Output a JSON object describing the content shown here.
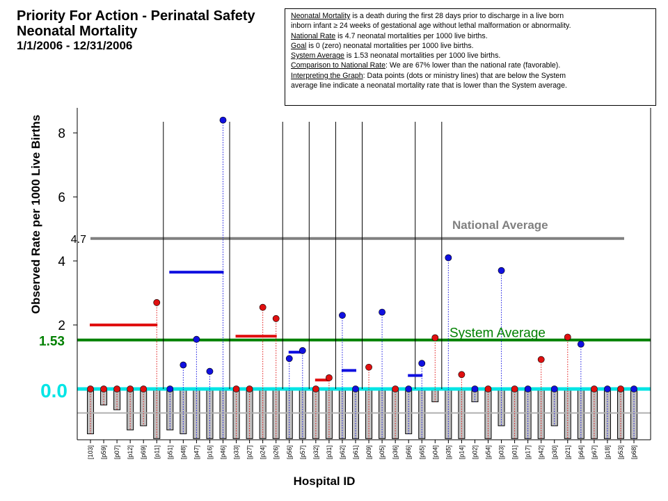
{
  "header": {
    "title_line1": "Priority For Action - Perinatal Safety",
    "title_line2": "Neonatal Mortality",
    "date_range": "1/1/2006 - 12/31/2006"
  },
  "info_box": {
    "lines": [
      {
        "term": "Neonatal Mortality",
        "rest": " is a death during the first 28 days prior to discharge in a live born"
      },
      {
        "term": "",
        "rest": "inborn infant ≥ 24 weeks of gestational age without lethal malformation or abnormality."
      },
      {
        "term": "National Rate",
        "rest": " is 4.7 neonatal mortalities per 1000 live births."
      },
      {
        "term": "Goal",
        "rest": " is 0 (zero) neonatal mortalities per 1000 live births."
      },
      {
        "term": "System Average",
        "rest": " is 1.53 neonatal mortalities per 1000 live births."
      },
      {
        "term": "Comparison to National Rate",
        "rest": ": We are 67% lower than the national rate (favorable)."
      },
      {
        "term": "Interpreting the Graph",
        "rest": ": Data points (dots or ministry lines) that are below the System"
      },
      {
        "term": "",
        "rest": "average line indicate a neonatal mortality rate that is lower than the System average."
      }
    ]
  },
  "chart_data": {
    "type": "scatter",
    "title": "Priority For Action - Perinatal Safety — Neonatal Mortality",
    "xlabel": "Hospital ID",
    "ylabel": "Observed Rate per 1000 Live Births",
    "yticks": [
      2,
      4,
      6,
      8
    ],
    "ylim": [
      -1.65,
      8.6
    ],
    "grid": false,
    "national_average": {
      "value": 4.7,
      "label": "National Average",
      "tick_label": "4.7",
      "color": "#808080"
    },
    "system_average": {
      "value": 1.53,
      "label": "System Average",
      "tick_label": "1.53",
      "color": "#008000"
    },
    "goal": {
      "value": 0.0,
      "tick_label": "0.0",
      "color": "#00e5e5"
    },
    "bar_baseline": -0.75,
    "colors": {
      "red": "#e01010",
      "blue": "#1010e0",
      "bar_fill": "#c0c0c0"
    },
    "hospitals": [
      {
        "id": "[103]",
        "value": 0.0,
        "color": "red",
        "bar": -1.4
      },
      {
        "id": "[p59]",
        "value": 0.0,
        "color": "red",
        "bar": -0.5
      },
      {
        "id": "[p07]",
        "value": 0.0,
        "color": "red",
        "bar": -0.65
      },
      {
        "id": "[p12]",
        "value": 0.0,
        "color": "red",
        "bar": -1.28
      },
      {
        "id": "[p69]",
        "value": 0.0,
        "color": "red",
        "bar": -1.15
      },
      {
        "id": "[p11]",
        "value": 2.7,
        "color": "red",
        "bar": -1.55
      },
      {
        "id": "[p51]",
        "value": 0.0,
        "color": "blue",
        "bar": -1.28
      },
      {
        "id": "[p48]",
        "value": 0.75,
        "color": "blue",
        "bar": -1.4
      },
      {
        "id": "[p47]",
        "value": 1.55,
        "color": "blue",
        "bar": -1.55
      },
      {
        "id": "[p16]",
        "value": 0.55,
        "color": "blue",
        "bar": -1.55
      },
      {
        "id": "[p46]",
        "value": 8.4,
        "color": "blue",
        "bar": -1.55
      },
      {
        "id": "[p33]",
        "value": 0.0,
        "color": "red",
        "bar": -1.55
      },
      {
        "id": "[p27]",
        "value": 0.0,
        "color": "red",
        "bar": -1.55
      },
      {
        "id": "[p24]",
        "value": 2.55,
        "color": "red",
        "bar": -1.55
      },
      {
        "id": "[p26]",
        "value": 2.2,
        "color": "red",
        "bar": -1.55
      },
      {
        "id": "[p56]",
        "value": 0.95,
        "color": "blue",
        "bar": -1.55
      },
      {
        "id": "[p57]",
        "value": 1.2,
        "color": "blue",
        "bar": -1.55
      },
      {
        "id": "[p32]",
        "value": 0.0,
        "color": "red",
        "bar": -1.55
      },
      {
        "id": "[p31]",
        "value": 0.35,
        "color": "red",
        "bar": -1.55
      },
      {
        "id": "[p62]",
        "value": 2.3,
        "color": "blue",
        "bar": -1.55
      },
      {
        "id": "[p61]",
        "value": 0.0,
        "color": "blue",
        "bar": -1.55
      },
      {
        "id": "[p09]",
        "value": 0.68,
        "color": "red",
        "bar": -1.55
      },
      {
        "id": "[p05]",
        "value": 2.4,
        "color": "blue",
        "bar": -1.55
      },
      {
        "id": "[p36]",
        "value": 0.0,
        "color": "red",
        "bar": -1.55
      },
      {
        "id": "[p66]",
        "value": 0.0,
        "color": "blue",
        "bar": -1.4
      },
      {
        "id": "[p65]",
        "value": 0.8,
        "color": "blue",
        "bar": -1.55
      },
      {
        "id": "[p04]",
        "value": 1.6,
        "color": "red",
        "bar": -0.4
      },
      {
        "id": "[p35]",
        "value": 4.1,
        "color": "blue",
        "bar": -1.55
      },
      {
        "id": "[p14]",
        "value": 0.45,
        "color": "red",
        "bar": -1.55
      },
      {
        "id": "[p02]",
        "value": 0.0,
        "color": "blue",
        "bar": -0.4
      },
      {
        "id": "[p54]",
        "value": 0.0,
        "color": "red",
        "bar": -1.55
      },
      {
        "id": "[p03]",
        "value": 3.7,
        "color": "blue",
        "bar": -1.15
      },
      {
        "id": "[p01]",
        "value": 0.0,
        "color": "red",
        "bar": -1.55
      },
      {
        "id": "[p17]",
        "value": 0.0,
        "color": "blue",
        "bar": -1.55
      },
      {
        "id": "[p42]",
        "value": 0.92,
        "color": "red",
        "bar": -1.55
      },
      {
        "id": "[p30]",
        "value": 0.0,
        "color": "blue",
        "bar": -1.15
      },
      {
        "id": "[p21]",
        "value": 1.62,
        "color": "red",
        "bar": -1.55
      },
      {
        "id": "[p64]",
        "value": 1.4,
        "color": "blue",
        "bar": -1.55
      },
      {
        "id": "[p67]",
        "value": 0.0,
        "color": "red",
        "bar": -1.55
      },
      {
        "id": "[p18]",
        "value": 0.0,
        "color": "blue",
        "bar": -1.55
      },
      {
        "id": "[p53]",
        "value": 0.0,
        "color": "red",
        "bar": -1.55
      },
      {
        "id": "[p68]",
        "value": 0.0,
        "color": "blue",
        "bar": -1.55
      }
    ],
    "ministry_groups": [
      {
        "from": 0,
        "to": 5,
        "value": 2.0,
        "color": "red"
      },
      {
        "from": 6,
        "to": 10,
        "value": 3.65,
        "color": "blue"
      },
      {
        "from": 11,
        "to": 14,
        "value": 1.65,
        "color": "red"
      },
      {
        "from": 15,
        "to": 16,
        "value": 1.15,
        "color": "blue"
      },
      {
        "from": 17,
        "to": 18,
        "value": 0.28,
        "color": "red"
      },
      {
        "from": 19,
        "to": 20,
        "value": 0.58,
        "color": "blue"
      },
      {
        "from": 24,
        "to": 25,
        "value": 0.42,
        "color": "blue"
      }
    ],
    "separators_after": [
      5,
      10,
      14,
      16,
      18,
      20,
      24,
      26
    ]
  }
}
